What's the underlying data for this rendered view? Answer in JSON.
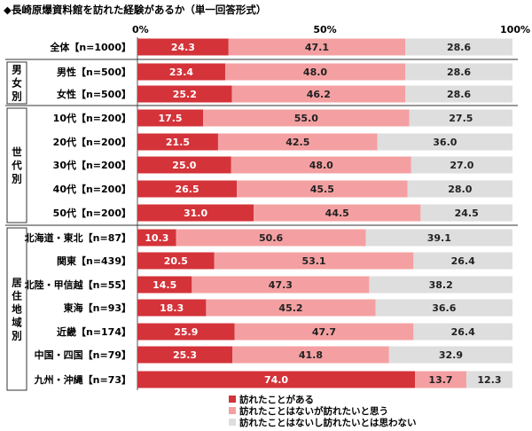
{
  "chart_data": {
    "type": "bar",
    "orientation": "horizontal-stacked-percent",
    "title": "◆長崎原爆資料館を訪れた経験があるか（単一回答形式）",
    "axis": {
      "min": 0,
      "max": 100,
      "ticks": [
        "0%",
        "50%",
        "100%"
      ]
    },
    "legend": {
      "position": "bottom",
      "entries": [
        "訪れたことがある",
        "訪れたことはないが訪れたいと思う",
        "訪れたことはないし訪れたいとは思わない"
      ]
    },
    "colors": [
      "#d4333a",
      "#f4a0a2",
      "#dedede"
    ],
    "value_text_colors": [
      "#ffffff",
      "#222222",
      "#222222"
    ],
    "groups": [
      {
        "label": "",
        "rows": [
          0
        ]
      },
      {
        "label": "男女別",
        "rows": [
          1,
          2
        ]
      },
      {
        "label": "世代別",
        "rows": [
          3,
          4,
          5,
          6,
          7
        ]
      },
      {
        "label": "居住地域別",
        "rows": [
          8,
          9,
          10,
          11,
          12,
          13,
          14
        ]
      }
    ],
    "rows": [
      {
        "label": "全体【n=1000】",
        "values": [
          24.3,
          47.1,
          28.6
        ],
        "labels": [
          "24.3",
          "47.1",
          "28.6"
        ]
      },
      {
        "label": "男性【n=500】",
        "values": [
          23.4,
          48.0,
          28.6
        ],
        "labels": [
          "23.4",
          "48.0",
          "28.6"
        ]
      },
      {
        "label": "女性【n=500】",
        "values": [
          25.2,
          46.2,
          28.6
        ],
        "labels": [
          "25.2",
          "46.2",
          "28.6"
        ]
      },
      {
        "label": "10代【n=200】",
        "values": [
          17.5,
          55.0,
          27.5
        ],
        "labels": [
          "17.5",
          "55.0",
          "27.5"
        ]
      },
      {
        "label": "20代【n=200】",
        "values": [
          21.5,
          42.5,
          36.0
        ],
        "labels": [
          "21.5",
          "42.5",
          "36.0"
        ]
      },
      {
        "label": "30代【n=200】",
        "values": [
          25.0,
          48.0,
          27.0
        ],
        "labels": [
          "25.0",
          "48.0",
          "27.0"
        ]
      },
      {
        "label": "40代【n=200】",
        "values": [
          26.5,
          45.5,
          28.0
        ],
        "labels": [
          "26.5",
          "45.5",
          "28.0"
        ]
      },
      {
        "label": "50代【n=200】",
        "values": [
          31.0,
          44.5,
          24.5
        ],
        "labels": [
          "31.0",
          "44.5",
          "24.5"
        ]
      },
      {
        "label": "北海道・東北【n=87】",
        "values": [
          10.3,
          50.6,
          39.1
        ],
        "labels": [
          "10.3",
          "50.6",
          "39.1"
        ]
      },
      {
        "label": "関東【n=439】",
        "values": [
          20.5,
          53.1,
          26.4
        ],
        "labels": [
          "20.5",
          "53.1",
          "26.4"
        ]
      },
      {
        "label": "北陸・甲信越【n=55】",
        "values": [
          14.5,
          47.3,
          38.2
        ],
        "labels": [
          "14.5",
          "47.3",
          "38.2"
        ]
      },
      {
        "label": "東海【n=93】",
        "values": [
          18.3,
          45.2,
          36.6
        ],
        "labels": [
          "18.3",
          "45.2",
          "36.6"
        ]
      },
      {
        "label": "近畿【n=174】",
        "values": [
          25.9,
          47.7,
          26.4
        ],
        "labels": [
          "25.9",
          "47.7",
          "26.4"
        ]
      },
      {
        "label": "中国・四国【n=79】",
        "values": [
          25.3,
          41.8,
          32.9
        ],
        "labels": [
          "25.3",
          "41.8",
          "32.9"
        ]
      },
      {
        "label": "九州・沖縄【n=73】",
        "values": [
          74.0,
          13.7,
          12.3
        ],
        "labels": [
          "74.0",
          "13.7",
          "12.3"
        ]
      }
    ]
  }
}
